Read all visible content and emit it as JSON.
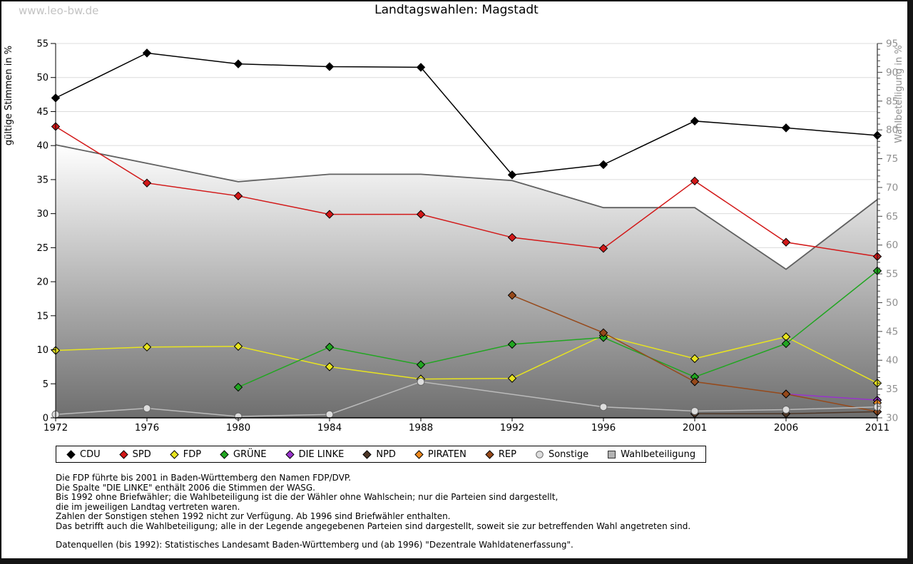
{
  "page": {
    "watermark": "www.leo-bw.de",
    "title": "Landtagswahlen: Magstadt"
  },
  "chart_data": {
    "type": "line",
    "title": "Landtagswahlen: Magstadt",
    "categories": [
      "1972",
      "1976",
      "1980",
      "1984",
      "1988",
      "1992",
      "1996",
      "2001",
      "2006",
      "2011"
    ],
    "left_axis": {
      "label": "gültige Stimmen in %",
      "min": 0,
      "max": 55,
      "step": 5
    },
    "right_axis": {
      "label": "Wahlbeteiligung in %",
      "min": 30,
      "max": 95,
      "step": 5
    },
    "grid": true,
    "legend_position": "bottom",
    "series": [
      {
        "name": "CDU",
        "axis": "left",
        "marker": "diamond",
        "color": "#000000",
        "values": [
          47.0,
          53.6,
          52.0,
          51.6,
          51.5,
          35.7,
          37.2,
          43.6,
          42.6,
          41.5
        ]
      },
      {
        "name": "SPD",
        "axis": "left",
        "marker": "diamond",
        "color": "#d21818",
        "values": [
          42.8,
          34.5,
          32.6,
          29.9,
          29.9,
          26.5,
          24.9,
          34.8,
          25.8,
          23.7
        ]
      },
      {
        "name": "FDP",
        "axis": "left",
        "marker": "diamond",
        "color": "#e8e41f",
        "values": [
          9.9,
          10.4,
          10.5,
          7.5,
          5.7,
          5.8,
          12.1,
          8.7,
          11.9,
          5.1
        ]
      },
      {
        "name": "GRÜNE",
        "axis": "left",
        "marker": "diamond",
        "color": "#21a621",
        "values": [
          null,
          null,
          4.5,
          10.4,
          7.8,
          10.8,
          11.8,
          6.0,
          10.9,
          21.6
        ]
      },
      {
        "name": "DIE LINKE",
        "axis": "left",
        "marker": "diamond",
        "color": "#9933cc",
        "values": [
          null,
          null,
          null,
          null,
          null,
          null,
          null,
          null,
          3.5,
          2.6
        ]
      },
      {
        "name": "NPD",
        "axis": "left",
        "marker": "diamond",
        "color": "#4d3626",
        "values": [
          null,
          null,
          null,
          null,
          null,
          null,
          null,
          0.6,
          0.6,
          0.9
        ]
      },
      {
        "name": "PIRATEN",
        "axis": "left",
        "marker": "diamond",
        "color": "#ef8a1f",
        "values": [
          null,
          null,
          null,
          null,
          null,
          null,
          null,
          null,
          null,
          2.2
        ]
      },
      {
        "name": "REP",
        "axis": "left",
        "marker": "diamond",
        "color": "#96491a",
        "values": [
          null,
          null,
          null,
          null,
          null,
          18.0,
          12.5,
          5.3,
          3.5,
          0.9
        ]
      },
      {
        "name": "Sonstige",
        "axis": "left",
        "marker": "circle",
        "color": "#bbbbbb",
        "marker_fill": "#dddddd",
        "values": [
          0.5,
          1.4,
          0.2,
          0.5,
          5.3,
          null,
          1.6,
          1.0,
          1.2,
          1.6
        ]
      },
      {
        "name": "Wahlbeteiligung",
        "axis": "right",
        "marker": "square",
        "color": "#606060",
        "area": true,
        "values": [
          77.4,
          74.2,
          71.0,
          72.3,
          72.3,
          71.2,
          66.5,
          66.5,
          55.8,
          67.9
        ]
      }
    ]
  },
  "footnotes": [
    "Die FDP führte bis 2001 in Baden-Württemberg den Namen FDP/DVP.",
    "Die Spalte \"DIE LINKE\" enthält 2006 die Stimmen der WASG.",
    "Bis 1992 ohne Briefwähler; die Wahlbeteiligung ist die der Wähler ohne Wahlschein; nur die Parteien sind dargestellt,",
    "die im jeweiligen Landtag vertreten waren.",
    "Zahlen der Sonstigen stehen 1992 nicht zur Verfügung. Ab 1996 sind Briefwähler enthalten.",
    "Das betrifft auch die Wahlbeteiligung; alle in der Legende angegebenen Parteien sind dargestellt, soweit sie zur betreffenden Wahl angetreten sind."
  ],
  "source_line": "Datenquellen (bis 1992): Statistisches Landesamt Baden-Württemberg und (ab 1996) \"Dezentrale Wahldatenerfassung\"."
}
